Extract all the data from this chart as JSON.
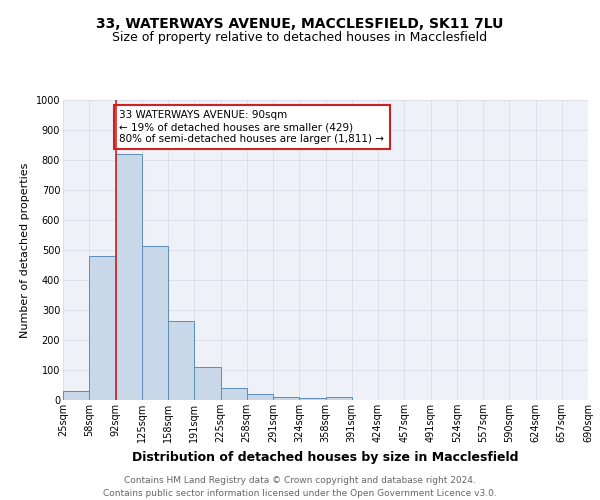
{
  "title1": "33, WATERWAYS AVENUE, MACCLESFIELD, SK11 7LU",
  "title2": "Size of property relative to detached houses in Macclesfield",
  "xlabel": "Distribution of detached houses by size in Macclesfield",
  "ylabel": "Number of detached properties",
  "bin_labels": [
    "25sqm",
    "58sqm",
    "92sqm",
    "125sqm",
    "158sqm",
    "191sqm",
    "225sqm",
    "258sqm",
    "291sqm",
    "324sqm",
    "358sqm",
    "391sqm",
    "424sqm",
    "457sqm",
    "491sqm",
    "524sqm",
    "557sqm",
    "590sqm",
    "624sqm",
    "657sqm",
    "690sqm"
  ],
  "bar_heights": [
    30,
    480,
    820,
    515,
    265,
    110,
    40,
    20,
    10,
    8,
    10,
    0,
    0,
    0,
    0,
    0,
    0,
    0,
    0,
    0
  ],
  "bar_color": "#c8d8e8",
  "bar_edge_color": "#5b8db8",
  "grid_color": "#d8dde8",
  "vline_x": 2,
  "vline_color": "#cc2222",
  "annotation_text": "33 WATERWAYS AVENUE: 90sqm\n← 19% of detached houses are smaller (429)\n80% of semi-detached houses are larger (1,811) →",
  "annotation_box_color": "#cc2222",
  "ylim": [
    0,
    1000
  ],
  "yticks": [
    0,
    100,
    200,
    300,
    400,
    500,
    600,
    700,
    800,
    900,
    1000
  ],
  "footer": "Contains HM Land Registry data © Crown copyright and database right 2024.\nContains public sector information licensed under the Open Government Licence v3.0.",
  "bg_color": "#eef2f8",
  "title1_fontsize": 10,
  "title2_fontsize": 9,
  "xlabel_fontsize": 9,
  "ylabel_fontsize": 8,
  "tick_fontsize": 7,
  "annotation_fontsize": 7.5,
  "footer_fontsize": 6.5
}
